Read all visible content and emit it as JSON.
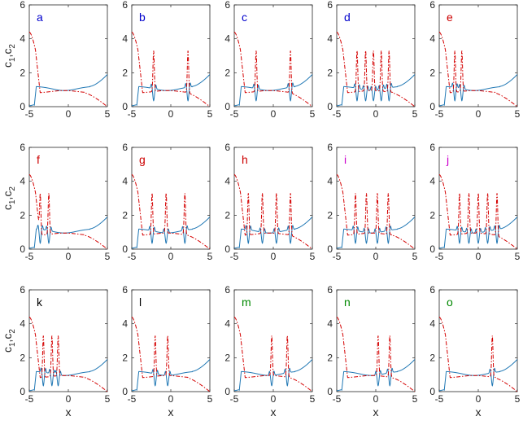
{
  "chart_data": {
    "type": "line",
    "layout": "3x5 small-multiples grid",
    "ylabel": "c",
    "ylabel_sub1": "1",
    "ylabel_sep": ",c",
    "ylabel_sub2": "2",
    "xlabel": "x",
    "xlim": [
      -5,
      5
    ],
    "ylim": [
      0,
      6
    ],
    "xticks": [
      -5,
      0,
      5
    ],
    "yticks": [
      0,
      2,
      4,
      6
    ],
    "series": [
      {
        "name": "c1",
        "style": "solid",
        "color": "#1f77b4"
      },
      {
        "name": "c2",
        "style": "dash-dot",
        "color": "#d40000"
      }
    ],
    "baseline": {
      "c1_plateau": 1.2,
      "c2_plateau": 0.8,
      "c1_right_end": 1.9,
      "c2_left_start": 4.4
    },
    "panels": [
      {
        "label": "a",
        "label_color": "#0000cc",
        "spike_x": []
      },
      {
        "label": "b",
        "label_color": "#0000cc",
        "spike_x": [
          -2.2,
          2.2
        ]
      },
      {
        "label": "c",
        "label_color": "#0000cc",
        "spike_x": [
          -2.2,
          2.2
        ]
      },
      {
        "label": "d",
        "label_color": "#0000cc",
        "spike_x": [
          -2.4,
          -1.3,
          -0.3,
          0.7,
          1.7
        ]
      },
      {
        "label": "e",
        "label_color": "#cc0000",
        "spike_x": [
          -3.0,
          -2.1
        ]
      },
      {
        "label": "f",
        "label_color": "#cc0000",
        "spike_x": [
          -3.6,
          -2.5
        ]
      },
      {
        "label": "g",
        "label_color": "#cc0000",
        "spike_x": [
          -2.4,
          -0.6,
          1.8
        ]
      },
      {
        "label": "h",
        "label_color": "#cc0000",
        "spike_x": [
          -3.2,
          -1.4,
          0.4,
          2.2
        ]
      },
      {
        "label": "i",
        "label_color": "#cc00cc",
        "spike_x": [
          -2.6,
          -1.2,
          0.2,
          1.6
        ]
      },
      {
        "label": "j",
        "label_color": "#cc00cc",
        "spike_x": [
          -2.4,
          -1.2,
          0.0,
          1.2,
          2.4
        ]
      },
      {
        "label": "k",
        "label_color": "#000000",
        "spike_x": [
          -3.2,
          -2.1,
          -1.3
        ]
      },
      {
        "label": "l",
        "label_color": "#000000",
        "spike_x": [
          -2.0,
          -0.4
        ]
      },
      {
        "label": "m",
        "label_color": "#008800",
        "spike_x": [
          -0.2,
          1.8
        ]
      },
      {
        "label": "n",
        "label_color": "#008800",
        "spike_x": [
          0.3,
          1.8
        ]
      },
      {
        "label": "o",
        "label_color": "#008800",
        "spike_x": [
          1.8
        ]
      }
    ],
    "spike_peak_c2": 3.3,
    "spike_min_c1": 0.35
  }
}
